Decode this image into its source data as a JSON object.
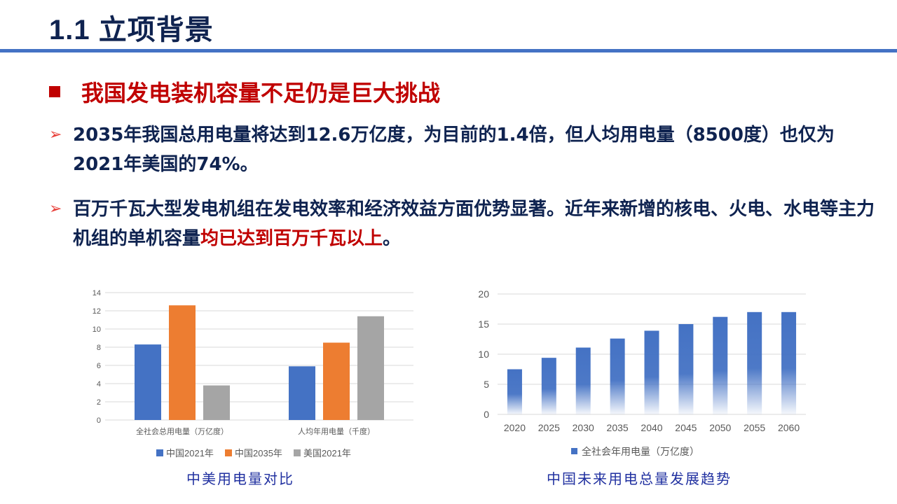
{
  "header": {
    "title": "1.1 立项背景"
  },
  "section": {
    "heading": "我国发电装机容量不足仍是巨大挑战"
  },
  "bullets": [
    {
      "text": "2035年我国总用电量将达到12.6万亿度，为目前的1.4倍，但人均用电量（8500度）也仅为2021年美国的74%。"
    },
    {
      "text_main": "百万千瓦大型发电机组在发电效率和经济效益方面优势显著。近年来新增的核电、火电、水电等主力机组的单机容量",
      "text_highlight": "均已达到百万千瓦以上",
      "text_end": "。"
    }
  ],
  "captions": {
    "left": "中美用电量对比",
    "right": "中国未来用电总量发展趋势"
  },
  "chart_data": [
    {
      "type": "bar",
      "categories": [
        "全社会总用电量（万亿度）",
        "人均年用电量（千度）"
      ],
      "series": [
        {
          "name": "中国2021年",
          "values": [
            8.3,
            5.9
          ],
          "color": "#4472c4"
        },
        {
          "name": "中国2035年",
          "values": [
            12.6,
            8.5
          ],
          "color": "#ed7d31"
        },
        {
          "name": "美国2021年",
          "values": [
            3.8,
            11.4
          ],
          "color": "#a5a5a5"
        }
      ],
      "ylim": [
        0,
        14
      ],
      "yticks": [
        0,
        2,
        4,
        6,
        8,
        10,
        12,
        14
      ],
      "grid": true,
      "legend": "bottom"
    },
    {
      "type": "bar",
      "categories": [
        "2020",
        "2025",
        "2030",
        "2035",
        "2040",
        "2045",
        "2050",
        "2055",
        "2060"
      ],
      "series": [
        {
          "name": "全社会年用电量（万亿度）",
          "values": [
            7.5,
            9.4,
            11.1,
            12.6,
            13.9,
            15.0,
            16.2,
            17.0,
            17.0
          ],
          "color": "#4472c4"
        }
      ],
      "ylim": [
        0,
        20
      ],
      "yticks": [
        0,
        5,
        10,
        15,
        20
      ],
      "grid": true,
      "legend": "bottom"
    }
  ]
}
